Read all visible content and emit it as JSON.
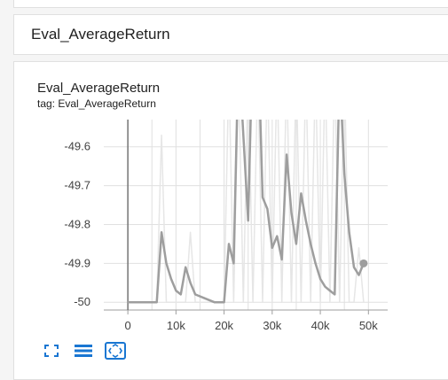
{
  "section": {
    "title": "Eval_AverageReturn"
  },
  "card": {
    "title": "Eval_AverageReturn",
    "tag": "tag: Eval_AverageReturn"
  },
  "toolbar": {
    "icons": [
      "fullscreen-icon",
      "data-table-icon",
      "fit-domain-icon"
    ]
  },
  "colors": {
    "line": "#9e9e9e",
    "line_raw": "#e6e6e6",
    "accent": "#1976d2",
    "grid": "#e0e0e0"
  },
  "chart_data": {
    "type": "line",
    "title": "",
    "xlabel": "",
    "ylabel": "",
    "xlim": [
      -5000,
      54000
    ],
    "ylim": [
      -50.02,
      -49.53
    ],
    "x_ticks": [
      0,
      10000,
      20000,
      30000,
      40000,
      50000
    ],
    "x_tick_labels": [
      "0",
      "10k",
      "20k",
      "30k",
      "40k",
      "50k"
    ],
    "y_ticks": [
      -50,
      -49.9,
      -49.8,
      -49.7,
      -49.6
    ],
    "y_tick_labels": [
      "-50",
      "-49.9",
      "-49.8",
      "-49.7",
      "-49.6"
    ],
    "series": [
      {
        "role": "raw",
        "x": [
          0,
          2000,
          4000,
          6000,
          7000,
          8000,
          9000,
          10000,
          11000,
          12000,
          13000,
          14000,
          15000,
          16000,
          17000,
          18000,
          19000,
          20000,
          21000,
          22000,
          23000,
          24000,
          25000,
          26000,
          27000,
          28000,
          29000,
          30000,
          31000,
          32000,
          33000,
          34000,
          35000,
          36000,
          37000,
          38000,
          39000,
          40000,
          41000,
          42000,
          43000,
          44000,
          45000,
          46000,
          47000,
          48000,
          49000
        ],
        "y": [
          -50,
          -50,
          -50,
          -50,
          -49.57,
          -50,
          -50,
          -50,
          -50,
          -50,
          -49.82,
          -50,
          -50,
          -50,
          -50,
          -50,
          -50,
          -50,
          -49.4,
          -50,
          -49.4,
          -50,
          -49.4,
          -50,
          -49.4,
          -50,
          -49.4,
          -50,
          -49.4,
          -50,
          -49.4,
          -50,
          -49.4,
          -50,
          -49.4,
          -50,
          -49.4,
          -50,
          -49.4,
          -50,
          -49.4,
          -50,
          -49.4,
          -50,
          -50,
          -49.86,
          -50
        ]
      },
      {
        "role": "smoothed",
        "x": [
          0,
          2000,
          4000,
          6000,
          7000,
          8000,
          9000,
          10000,
          11000,
          12000,
          13000,
          14000,
          16000,
          18000,
          20000,
          21000,
          22000,
          23000,
          25000,
          26000,
          27000,
          28000,
          29000,
          30000,
          31000,
          32000,
          33000,
          34000,
          35000,
          36000,
          37000,
          38000,
          39000,
          40000,
          41000,
          42000,
          43000,
          44000,
          45000,
          46000,
          47000,
          48000,
          49000
        ],
        "y": [
          -50,
          -50,
          -50,
          -50,
          -49.82,
          -49.9,
          -49.94,
          -49.97,
          -49.98,
          -49.91,
          -49.95,
          -49.98,
          -49.99,
          -50,
          -50,
          -49.85,
          -49.9,
          -49.35,
          -49.79,
          -49.3,
          -49.3,
          -49.73,
          -49.76,
          -49.86,
          -49.83,
          -49.89,
          -49.62,
          -49.77,
          -49.85,
          -49.72,
          -49.79,
          -49.85,
          -49.9,
          -49.94,
          -49.96,
          -49.97,
          -49.98,
          -49.4,
          -49.67,
          -49.82,
          -49.91,
          -49.93,
          -49.9
        ]
      }
    ],
    "highlight_point": {
      "x": 49000,
      "y": -49.9
    }
  }
}
